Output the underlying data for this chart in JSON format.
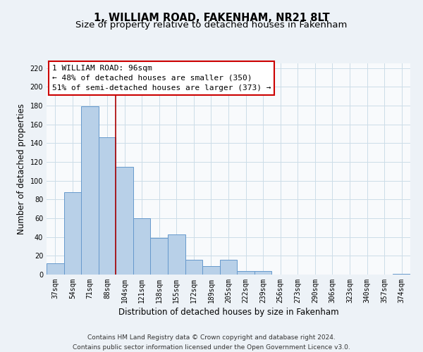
{
  "title": "1, WILLIAM ROAD, FAKENHAM, NR21 8LT",
  "subtitle": "Size of property relative to detached houses in Fakenham",
  "xlabel": "Distribution of detached houses by size in Fakenham",
  "ylabel": "Number of detached properties",
  "bar_labels": [
    "37sqm",
    "54sqm",
    "71sqm",
    "88sqm",
    "104sqm",
    "121sqm",
    "138sqm",
    "155sqm",
    "172sqm",
    "189sqm",
    "205sqm",
    "222sqm",
    "239sqm",
    "256sqm",
    "273sqm",
    "290sqm",
    "306sqm",
    "323sqm",
    "340sqm",
    "357sqm",
    "374sqm"
  ],
  "bar_values": [
    12,
    88,
    179,
    146,
    115,
    60,
    39,
    43,
    16,
    9,
    16,
    4,
    4,
    0,
    0,
    0,
    0,
    0,
    0,
    0,
    1
  ],
  "bar_color": "#b8d0e8",
  "bar_edge_color": "#6699cc",
  "vline_x": 3.5,
  "vline_color": "#aa0000",
  "annotation_line1": "1 WILLIAM ROAD: 96sqm",
  "annotation_line2": "← 48% of detached houses are smaller (350)",
  "annotation_line3": "51% of semi-detached houses are larger (373) →",
  "ylim": [
    0,
    225
  ],
  "yticks": [
    0,
    20,
    40,
    60,
    80,
    100,
    120,
    140,
    160,
    180,
    200,
    220
  ],
  "footer_text": "Contains HM Land Registry data © Crown copyright and database right 2024.\nContains public sector information licensed under the Open Government Licence v3.0.",
  "bg_color": "#edf2f7",
  "plot_bg_color": "#f8fafc",
  "grid_color": "#ccdde8",
  "title_fontsize": 10.5,
  "subtitle_fontsize": 9.5,
  "axis_label_fontsize": 8.5,
  "tick_fontsize": 7,
  "annotation_fontsize": 8,
  "footer_fontsize": 6.5
}
